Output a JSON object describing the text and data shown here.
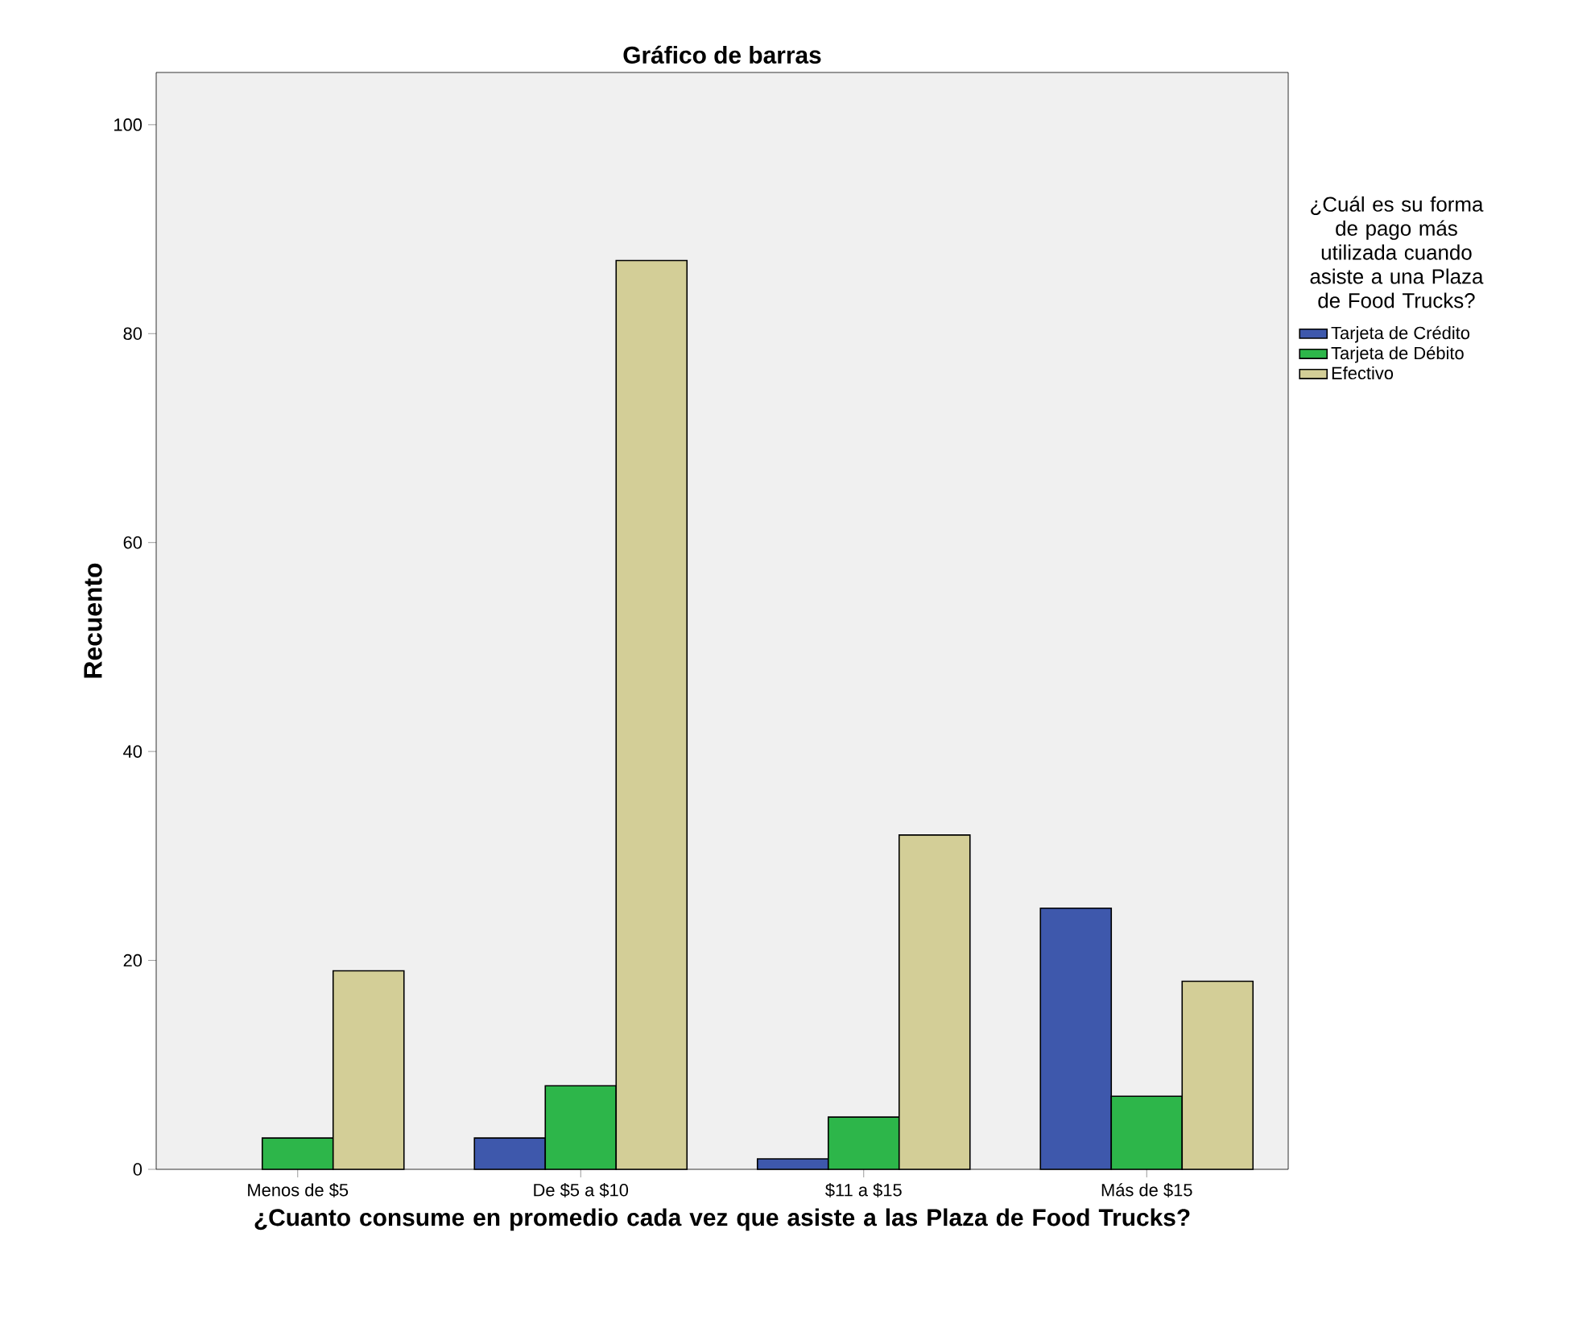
{
  "chart_data": {
    "type": "bar",
    "title": "Gráfico de barras",
    "xlabel": "¿Cuanto consume en promedio cada vez que asiste a las Plaza de Food Trucks?",
    "ylabel": "Recuento",
    "legend_title": "¿Cuál es su forma de pago más utilizada cuando asiste a una Plaza de Food Trucks?",
    "categories": [
      "Menos de $5",
      "De $5 a $10",
      "$11 a $15",
      "Más de $15"
    ],
    "series": [
      {
        "name": "Tarjeta de Crédito",
        "color": "#3e58ac",
        "values": [
          null,
          3,
          1,
          25
        ]
      },
      {
        "name": "Tarjeta de Débito",
        "color": "#2db64a",
        "values": [
          3,
          8,
          5,
          7
        ]
      },
      {
        "name": "Efectivo",
        "color": "#d3ce97",
        "values": [
          19,
          87,
          32,
          18
        ]
      }
    ],
    "ylim": [
      0,
      105
    ],
    "yticks": [
      0,
      20,
      40,
      60,
      80,
      100
    ],
    "legend": "right"
  }
}
